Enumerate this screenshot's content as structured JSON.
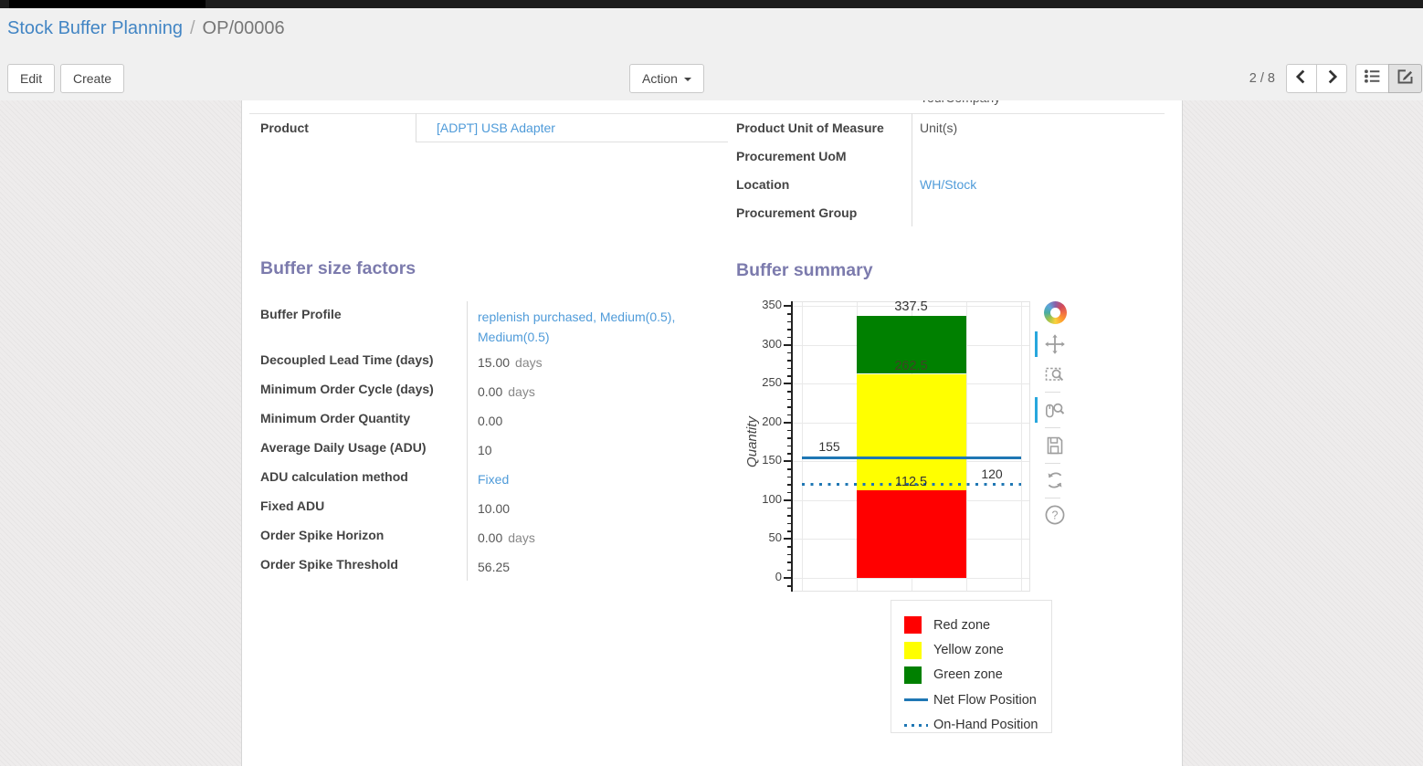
{
  "breadcrumb": {
    "parent": "Stock Buffer Planning",
    "separator": "/",
    "current": "OP/00006"
  },
  "control_panel": {
    "edit_label": "Edit",
    "create_label": "Create",
    "action_label": "Action",
    "pager_value": "2 / 8",
    "icons": [
      "chevron-left-icon",
      "chevron-right-icon",
      "list-view-icon",
      "form-view-icon"
    ],
    "active_view": "form"
  },
  "form": {
    "clipped_row_value": "YourCompany",
    "info_left": [
      {
        "label": "Product",
        "value": "[ADPT] USB Adapter",
        "link": true
      }
    ],
    "info_right": [
      {
        "label": "Product Unit of Measure",
        "value": "Unit(s)",
        "link": false
      },
      {
        "label": "Procurement UoM",
        "value": "",
        "link": false
      },
      {
        "label": "Location",
        "value": "WH/Stock",
        "link": true
      },
      {
        "label": "Procurement Group",
        "value": "",
        "link": false
      }
    ],
    "buffer_size_factors": {
      "title": "Buffer size factors",
      "rows": [
        {
          "label": "Buffer Profile",
          "value": "replenish purchased, Medium(0.5), Medium(0.5)",
          "link": true
        },
        {
          "label": "Decoupled Lead Time (days)",
          "value": "15.00",
          "suffix": "days"
        },
        {
          "label": "Minimum Order Cycle (days)",
          "value": "0.00",
          "suffix": "days"
        },
        {
          "label": "Minimum Order Quantity",
          "value": "0.00"
        },
        {
          "label": "Average Daily Usage (ADU)",
          "value": "10"
        },
        {
          "label": "ADU calculation method",
          "value": "Fixed",
          "link": true
        },
        {
          "label": "Fixed ADU",
          "value": "10.00"
        },
        {
          "label": "Order Spike Horizon",
          "value": "0.00",
          "suffix": "days"
        },
        {
          "label": "Order Spike Threshold",
          "value": "56.25"
        }
      ]
    },
    "buffer_summary_title": "Buffer summary"
  },
  "chart_data": {
    "type": "bar",
    "title": "Buffer summary",
    "ylabel": "Quantity",
    "ylim": [
      0,
      350
    ],
    "yticks": [
      0,
      50,
      100,
      150,
      200,
      250,
      300,
      350
    ],
    "grid": true,
    "zones": [
      {
        "name": "Red zone",
        "from": 0,
        "to": 112.5,
        "color": "#ff0000",
        "boundary_label": "112.5"
      },
      {
        "name": "Yellow zone",
        "from": 112.5,
        "to": 262.5,
        "color": "#ffff00",
        "boundary_label": "262.5"
      },
      {
        "name": "Green zone",
        "from": 262.5,
        "to": 337.5,
        "color": "#008000",
        "boundary_label": "337.5"
      }
    ],
    "lines": [
      {
        "name": "Net Flow Position",
        "value": 155,
        "label": "155",
        "style": "solid",
        "color": "#1f77b4"
      },
      {
        "name": "On-Hand Position",
        "value": 120,
        "label": "120",
        "style": "dotted",
        "color": "#1f77b4"
      }
    ],
    "legend_position": "below",
    "legend": [
      {
        "label": "Red zone",
        "swatch": "square",
        "color": "#ff0000"
      },
      {
        "label": "Yellow zone",
        "swatch": "square",
        "color": "#ffff00"
      },
      {
        "label": "Green zone",
        "swatch": "square",
        "color": "#008000"
      },
      {
        "label": "Net Flow Position",
        "swatch": "line",
        "color": "#1f77b4"
      },
      {
        "label": "On-Hand Position",
        "swatch": "dotted-line",
        "color": "#1f77b4"
      }
    ],
    "toolbar": [
      "bokeh-logo",
      "pan-tool",
      "box-zoom-tool",
      "wheel-zoom-tool",
      "save-tool",
      "reset-tool",
      "help-tool"
    ],
    "active_tools": [
      "pan-tool",
      "wheel-zoom-tool"
    ]
  },
  "colors": {
    "section_heading": "#7c7bad",
    "link": "#4f9bd9",
    "breadcrumb_link": "#4285c4",
    "net_flow_line": "#1f77b4",
    "red_zone": "#ff0000",
    "yellow_zone": "#ffff00",
    "green_zone": "#008000",
    "toolbar_active": "#28a7dd"
  }
}
